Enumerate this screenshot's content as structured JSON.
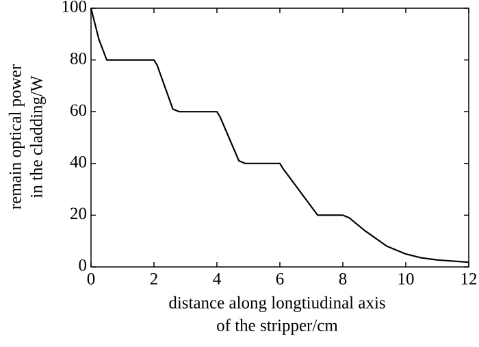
{
  "chart_data": {
    "type": "line",
    "xlabel": [
      "distance along longtiudinal axis",
      "of the stripper/cm"
    ],
    "ylabel": [
      "remain optical power",
      "in the cladding/W"
    ],
    "series": [
      {
        "color": "#000000",
        "x": [
          0,
          0.25,
          0.5,
          2,
          2.1,
          2.6,
          2.8,
          4,
          4.1,
          4.7,
          4.9,
          6,
          6.1,
          7.2,
          8,
          8.2,
          8.7,
          9.4,
          10,
          10.5,
          11,
          12
        ],
        "values": [
          100,
          88,
          80,
          80,
          78,
          61,
          60,
          60,
          58,
          41,
          40,
          40,
          38,
          20,
          20,
          19,
          14,
          8,
          5,
          3.5,
          2.7,
          1.8
        ]
      }
    ],
    "xlim": [
      0,
      12
    ],
    "xticks": [
      0,
      2,
      4,
      6,
      8,
      10,
      12
    ],
    "ylim": [
      0,
      100
    ],
    "yticks": [
      0,
      20,
      40,
      60,
      80,
      100
    ],
    "grid": false
  }
}
